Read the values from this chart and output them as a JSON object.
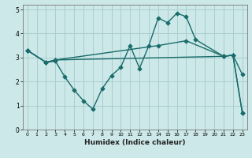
{
  "title": "",
  "xlabel": "Humidex (Indice chaleur)",
  "ylabel": "",
  "bg_color": "#cce8e8",
  "grid_color": "#aacece",
  "line_color": "#1a6b6b",
  "xlim": [
    -0.5,
    23.5
  ],
  "ylim": [
    0,
    5.2
  ],
  "xticks": [
    0,
    1,
    2,
    3,
    4,
    5,
    6,
    7,
    8,
    9,
    10,
    11,
    12,
    13,
    14,
    15,
    16,
    17,
    18,
    19,
    20,
    21,
    22,
    23
  ],
  "yticks": [
    0,
    1,
    2,
    3,
    4,
    5
  ],
  "line1_x": [
    0,
    2,
    3,
    4,
    5,
    6,
    7,
    8,
    9,
    10,
    11,
    12,
    13,
    14,
    15,
    16,
    17,
    18,
    21,
    22,
    23
  ],
  "line1_y": [
    3.3,
    2.8,
    2.85,
    2.2,
    1.65,
    1.2,
    0.85,
    1.7,
    2.25,
    2.6,
    3.5,
    2.55,
    3.5,
    4.65,
    4.45,
    4.85,
    4.7,
    3.75,
    3.05,
    3.1,
    2.3
  ],
  "line2_x": [
    0,
    2,
    3,
    21,
    22,
    23
  ],
  "line2_y": [
    3.3,
    2.8,
    2.9,
    3.05,
    3.1,
    0.7
  ],
  "line3_x": [
    0,
    2,
    3,
    14,
    17,
    21,
    22,
    23
  ],
  "line3_y": [
    3.3,
    2.8,
    2.9,
    3.5,
    3.7,
    3.05,
    3.1,
    0.7
  ]
}
